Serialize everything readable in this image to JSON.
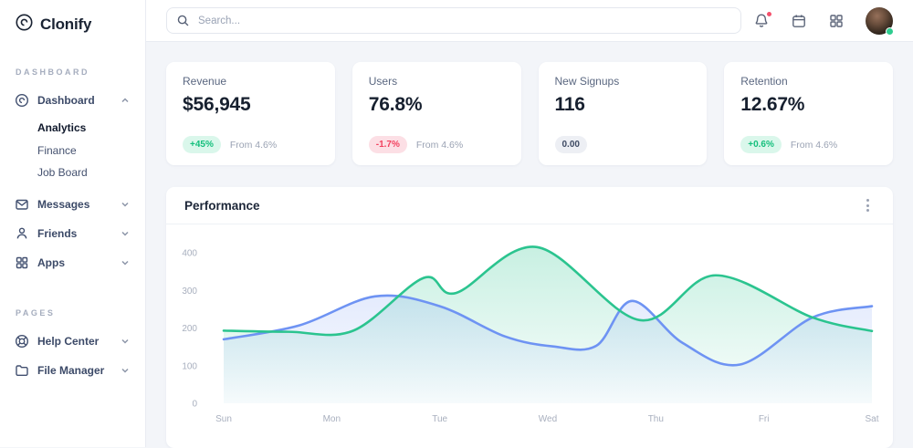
{
  "app": {
    "name": "Clonify"
  },
  "sidebar": {
    "logo_text": "Clonify",
    "section_dashboard": "DASHBOARD",
    "section_pages": "PAGES",
    "dashboard": "Dashboard",
    "analytics": "Analytics",
    "finance": "Finance",
    "job_board": "Job Board",
    "messages": "Messages",
    "friends": "Friends",
    "apps": "Apps",
    "help_center": "Help Center",
    "file_manager": "File Manager"
  },
  "topbar": {
    "search_placeholder": "Search..."
  },
  "cards": [
    {
      "title": "Revenue",
      "value": "$56,945",
      "badge": "+45%",
      "badge_type": "up",
      "sub": "From 4.6%"
    },
    {
      "title": "Users",
      "value": "76.8%",
      "badge": "-1.7%",
      "badge_type": "down",
      "sub": "From 4.6%"
    },
    {
      "title": "New Signups",
      "value": "116",
      "badge": "0.00",
      "badge_type": "neutral",
      "sub": ""
    },
    {
      "title": "Retention",
      "value": "12.67%",
      "badge": "+0.6%",
      "badge_type": "up",
      "sub": "From 4.6%"
    }
  ],
  "panel": {
    "title": "Performance"
  },
  "colors": {
    "accent_green": "#2bc48f",
    "accent_blue": "#6e93f3",
    "badge_up_text": "#14bf7c",
    "badge_down_text": "#f2415f",
    "notification_dot": "#f4516c",
    "status_online": "#2ecc8f"
  },
  "chart_data": {
    "type": "area",
    "title": "Performance",
    "x_labels": [
      "Sun",
      "Mon",
      "Tue",
      "Wed",
      "Thu",
      "Fri",
      "Sat"
    ],
    "y_ticks": [
      0,
      100,
      200,
      300,
      400
    ],
    "ylim": [
      0,
      440
    ],
    "grid": false,
    "legend": "none",
    "series": [
      {
        "name": "green",
        "color": "#2bc48f",
        "points": [
          [
            0,
            193
          ],
          [
            0.6,
            190
          ],
          [
            1.2,
            193
          ],
          [
            1.85,
            333
          ],
          [
            2.15,
            293
          ],
          [
            2.9,
            415
          ],
          [
            3.85,
            221
          ],
          [
            4.55,
            340
          ],
          [
            5.45,
            228
          ],
          [
            6,
            192
          ]
        ]
      },
      {
        "name": "blue",
        "color": "#6e93f3",
        "points": [
          [
            0,
            170
          ],
          [
            0.7,
            207
          ],
          [
            1.4,
            284
          ],
          [
            2.0,
            258
          ],
          [
            2.6,
            178
          ],
          [
            3.05,
            151
          ],
          [
            3.45,
            153
          ],
          [
            3.78,
            272
          ],
          [
            4.25,
            160
          ],
          [
            4.78,
            103
          ],
          [
            5.45,
            228
          ],
          [
            6,
            258
          ]
        ]
      }
    ]
  }
}
